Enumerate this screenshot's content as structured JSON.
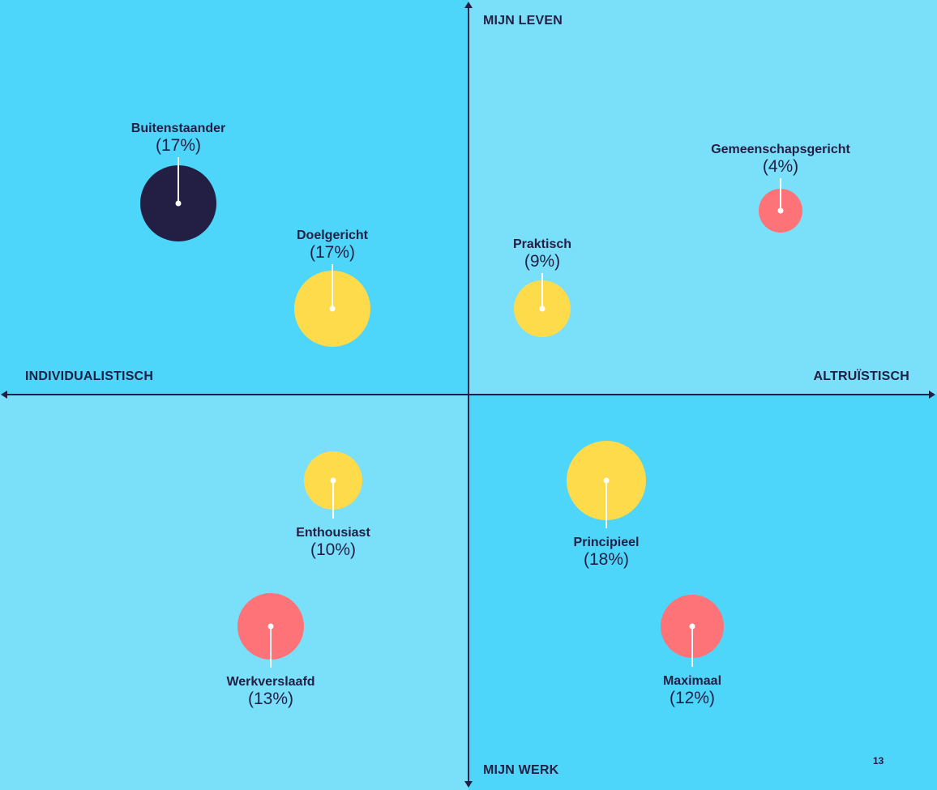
{
  "colors": {
    "quadrant_dark": "#4DD6F9",
    "quadrant_light": "#7ADFF9",
    "navy": "#221E44",
    "yellow": "#FEDB4B",
    "red": "#FE7377"
  },
  "axes": {
    "top": "MIJN LEVEN",
    "bottom": "MIJN WERK",
    "left": "INDIVIDUALISTISCH",
    "right": "ALTRUÏSTISCH"
  },
  "segments": [
    {
      "name": "Buitenstaander",
      "pct": "(17%)",
      "color": "navy"
    },
    {
      "name": "Doelgericht",
      "pct": "(17%)",
      "color": "yellow"
    },
    {
      "name": "Praktisch",
      "pct": "(9%)",
      "color": "yellow"
    },
    {
      "name": "Gemeenschapsgericht",
      "pct": "(4%)",
      "color": "red"
    },
    {
      "name": "Enthousiast",
      "pct": "(10%)",
      "color": "yellow"
    },
    {
      "name": "Principieel",
      "pct": "(18%)",
      "color": "yellow"
    },
    {
      "name": "Werkverslaafd",
      "pct": "(13%)",
      "color": "red"
    },
    {
      "name": "Maximaal",
      "pct": "(12%)",
      "color": "red"
    }
  ],
  "page_number": "13"
}
